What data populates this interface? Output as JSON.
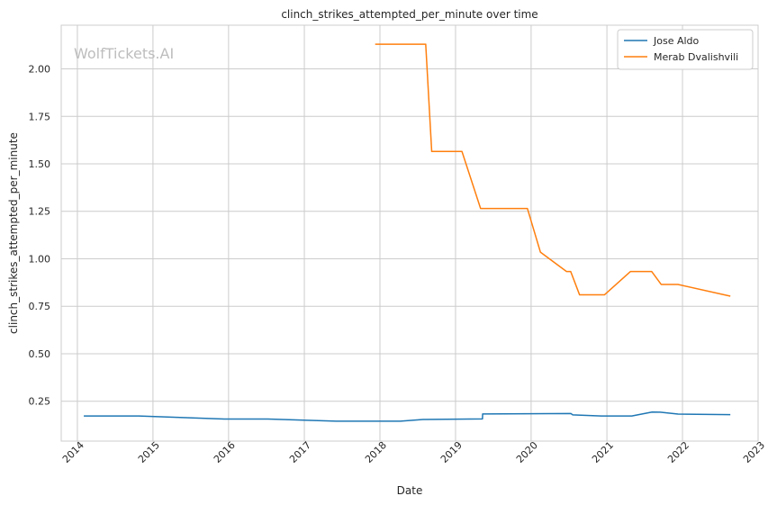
{
  "chart_data": {
    "type": "line",
    "title": "clinch_strikes_attempted_per_minute over time",
    "xlabel": "Date",
    "ylabel": "clinch_strikes_attempted_per_minute",
    "watermark": "WolfTickets.AI",
    "xlim": [
      "2013-10-15",
      "2023-01-01"
    ],
    "ylim": [
      0.04,
      2.23
    ],
    "x_ticks": [
      "2014",
      "2015",
      "2016",
      "2017",
      "2018",
      "2019",
      "2020",
      "2021",
      "2022",
      "2023"
    ],
    "y_ticks": [
      "0.25",
      "0.50",
      "0.75",
      "1.00",
      "1.25",
      "1.50",
      "1.75",
      "2.00"
    ],
    "grid": true,
    "legend_position": "top-right",
    "series": [
      {
        "name": "Jose Aldo",
        "color": "#1f77b4",
        "points": [
          [
            "2014-02-01",
            0.172
          ],
          [
            "2014-10-25",
            0.172
          ],
          [
            "2015-12-12",
            0.156
          ],
          [
            "2016-07-09",
            0.156
          ],
          [
            "2017-06-03",
            0.145
          ],
          [
            "2018-04-10",
            0.145
          ],
          [
            "2018-07-28",
            0.154
          ],
          [
            "2019-05-11",
            0.157
          ],
          [
            "2019-05-12",
            0.183
          ],
          [
            "2020-07-11",
            0.185
          ],
          [
            "2020-07-20",
            0.178
          ],
          [
            "2020-12-05",
            0.172
          ],
          [
            "2021-05-01",
            0.172
          ],
          [
            "2021-08-07",
            0.193
          ],
          [
            "2021-09-15",
            0.192
          ],
          [
            "2021-12-11",
            0.182
          ],
          [
            "2022-08-20",
            0.179
          ]
        ]
      },
      {
        "name": "Merab Dvalishvili",
        "color": "#ff7f0e",
        "points": [
          [
            "2017-12-09",
            2.13
          ],
          [
            "2018-08-10",
            2.13
          ],
          [
            "2018-09-08",
            1.565
          ],
          [
            "2019-02-01",
            1.565
          ],
          [
            "2019-05-02",
            1.265
          ],
          [
            "2019-12-14",
            1.265
          ],
          [
            "2020-02-15",
            1.035
          ],
          [
            "2020-06-20",
            0.933
          ],
          [
            "2020-07-10",
            0.933
          ],
          [
            "2020-08-22",
            0.81
          ],
          [
            "2020-12-20",
            0.81
          ],
          [
            "2021-04-25",
            0.933
          ],
          [
            "2021-08-05",
            0.933
          ],
          [
            "2021-09-20",
            0.865
          ],
          [
            "2021-12-10",
            0.865
          ],
          [
            "2022-08-20",
            0.803
          ]
        ]
      }
    ]
  }
}
